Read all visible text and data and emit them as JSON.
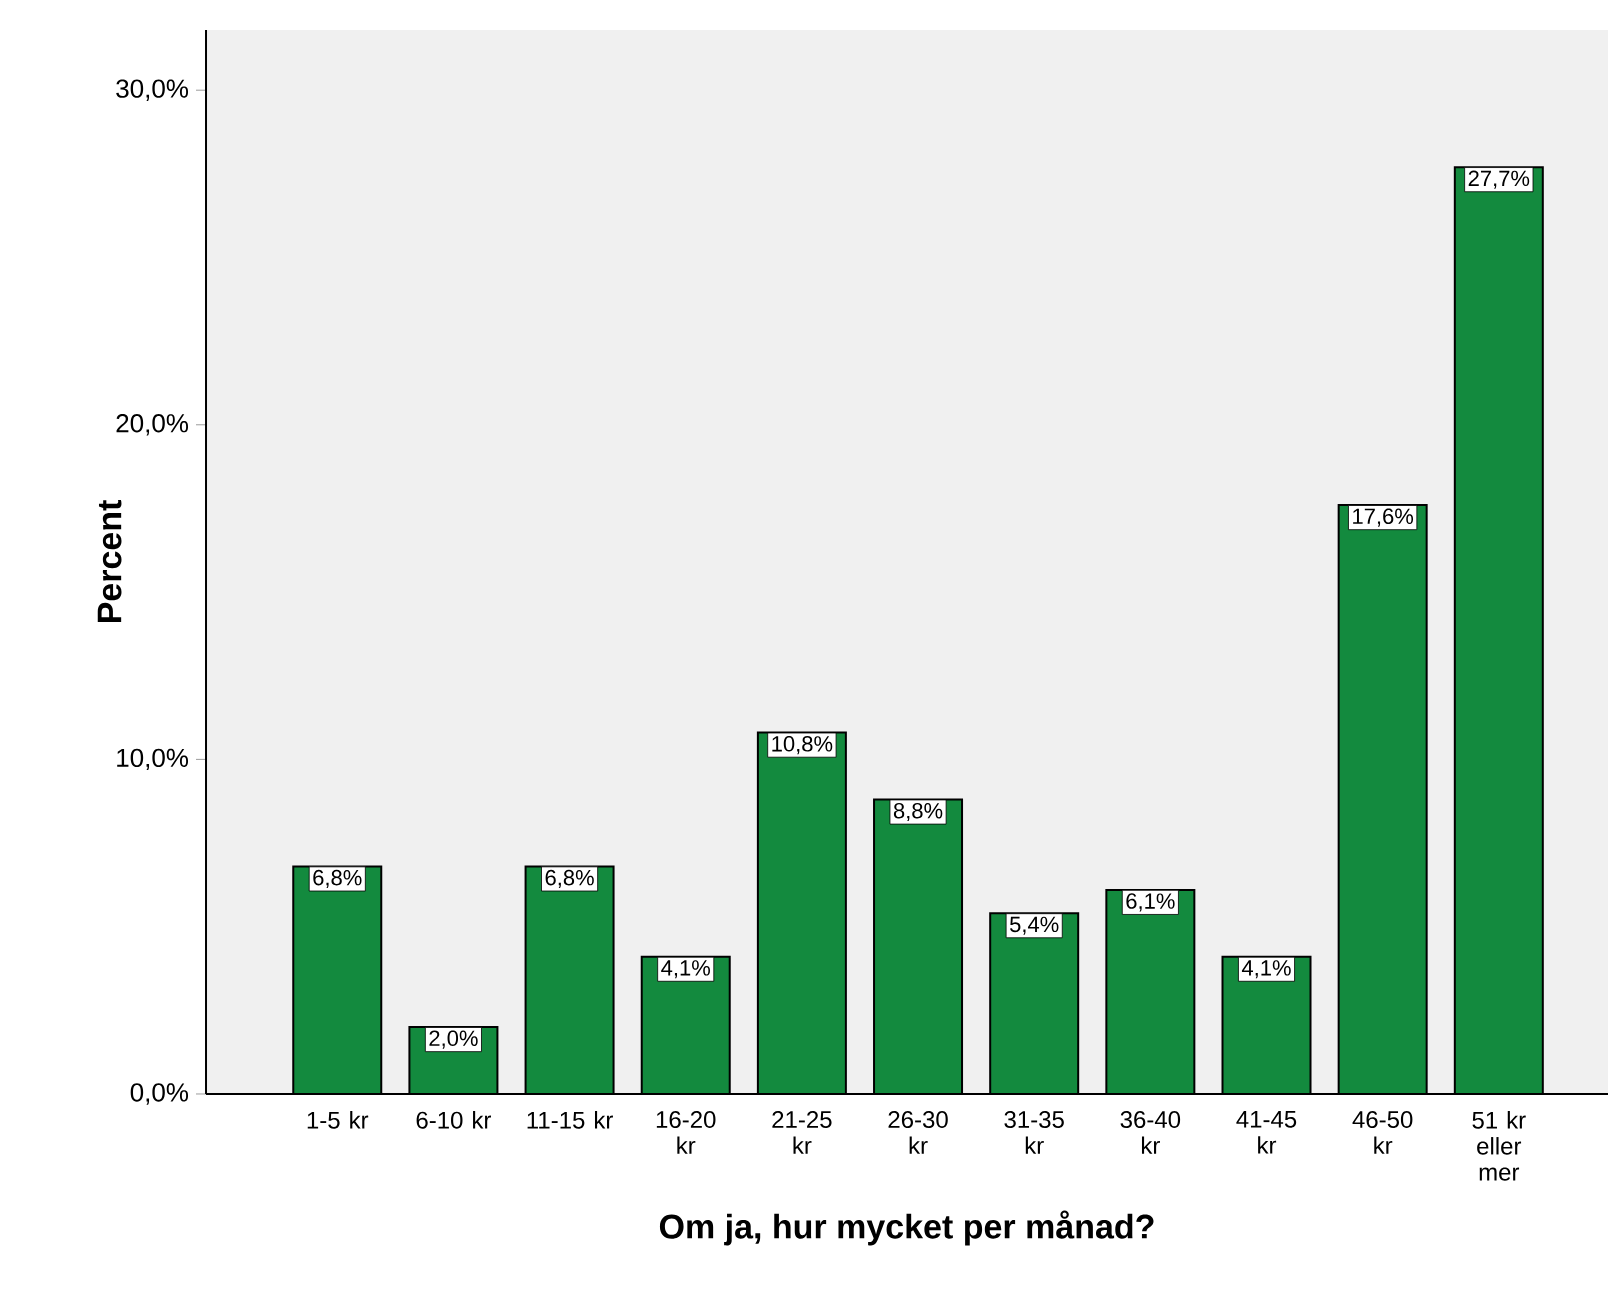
{
  "chart_data": {
    "type": "bar",
    "xlabel": "Om ja, hur mycket per månad?",
    "ylabel": "Percent",
    "categories": [
      "1-5 kr",
      "6-10 kr",
      "11-15 kr",
      "16-20 kr",
      "21-25 kr",
      "26-30 kr",
      "31-35 kr",
      "36-40 kr",
      "41-45 kr",
      "46-50 kr",
      "51 kr eller mer"
    ],
    "values": [
      6.8,
      2.0,
      6.8,
      4.1,
      10.8,
      8.8,
      5.4,
      6.1,
      4.1,
      17.6,
      27.7
    ],
    "value_labels": [
      "6,8%",
      "2,0%",
      "6,8%",
      "4,1%",
      "10,8%",
      "8,8%",
      "5,4%",
      "6,1%",
      "4,1%",
      "17,6%",
      "27,7%"
    ],
    "color": "#138a3e",
    "ylim": [
      0,
      31.8
    ],
    "yticks": [
      {
        "value": 0,
        "label": "0,0%"
      },
      {
        "value": 10,
        "label": "10,0%"
      },
      {
        "value": 20,
        "label": "20,0%"
      },
      {
        "value": 30,
        "label": "30,0%"
      }
    ],
    "grid": false
  }
}
